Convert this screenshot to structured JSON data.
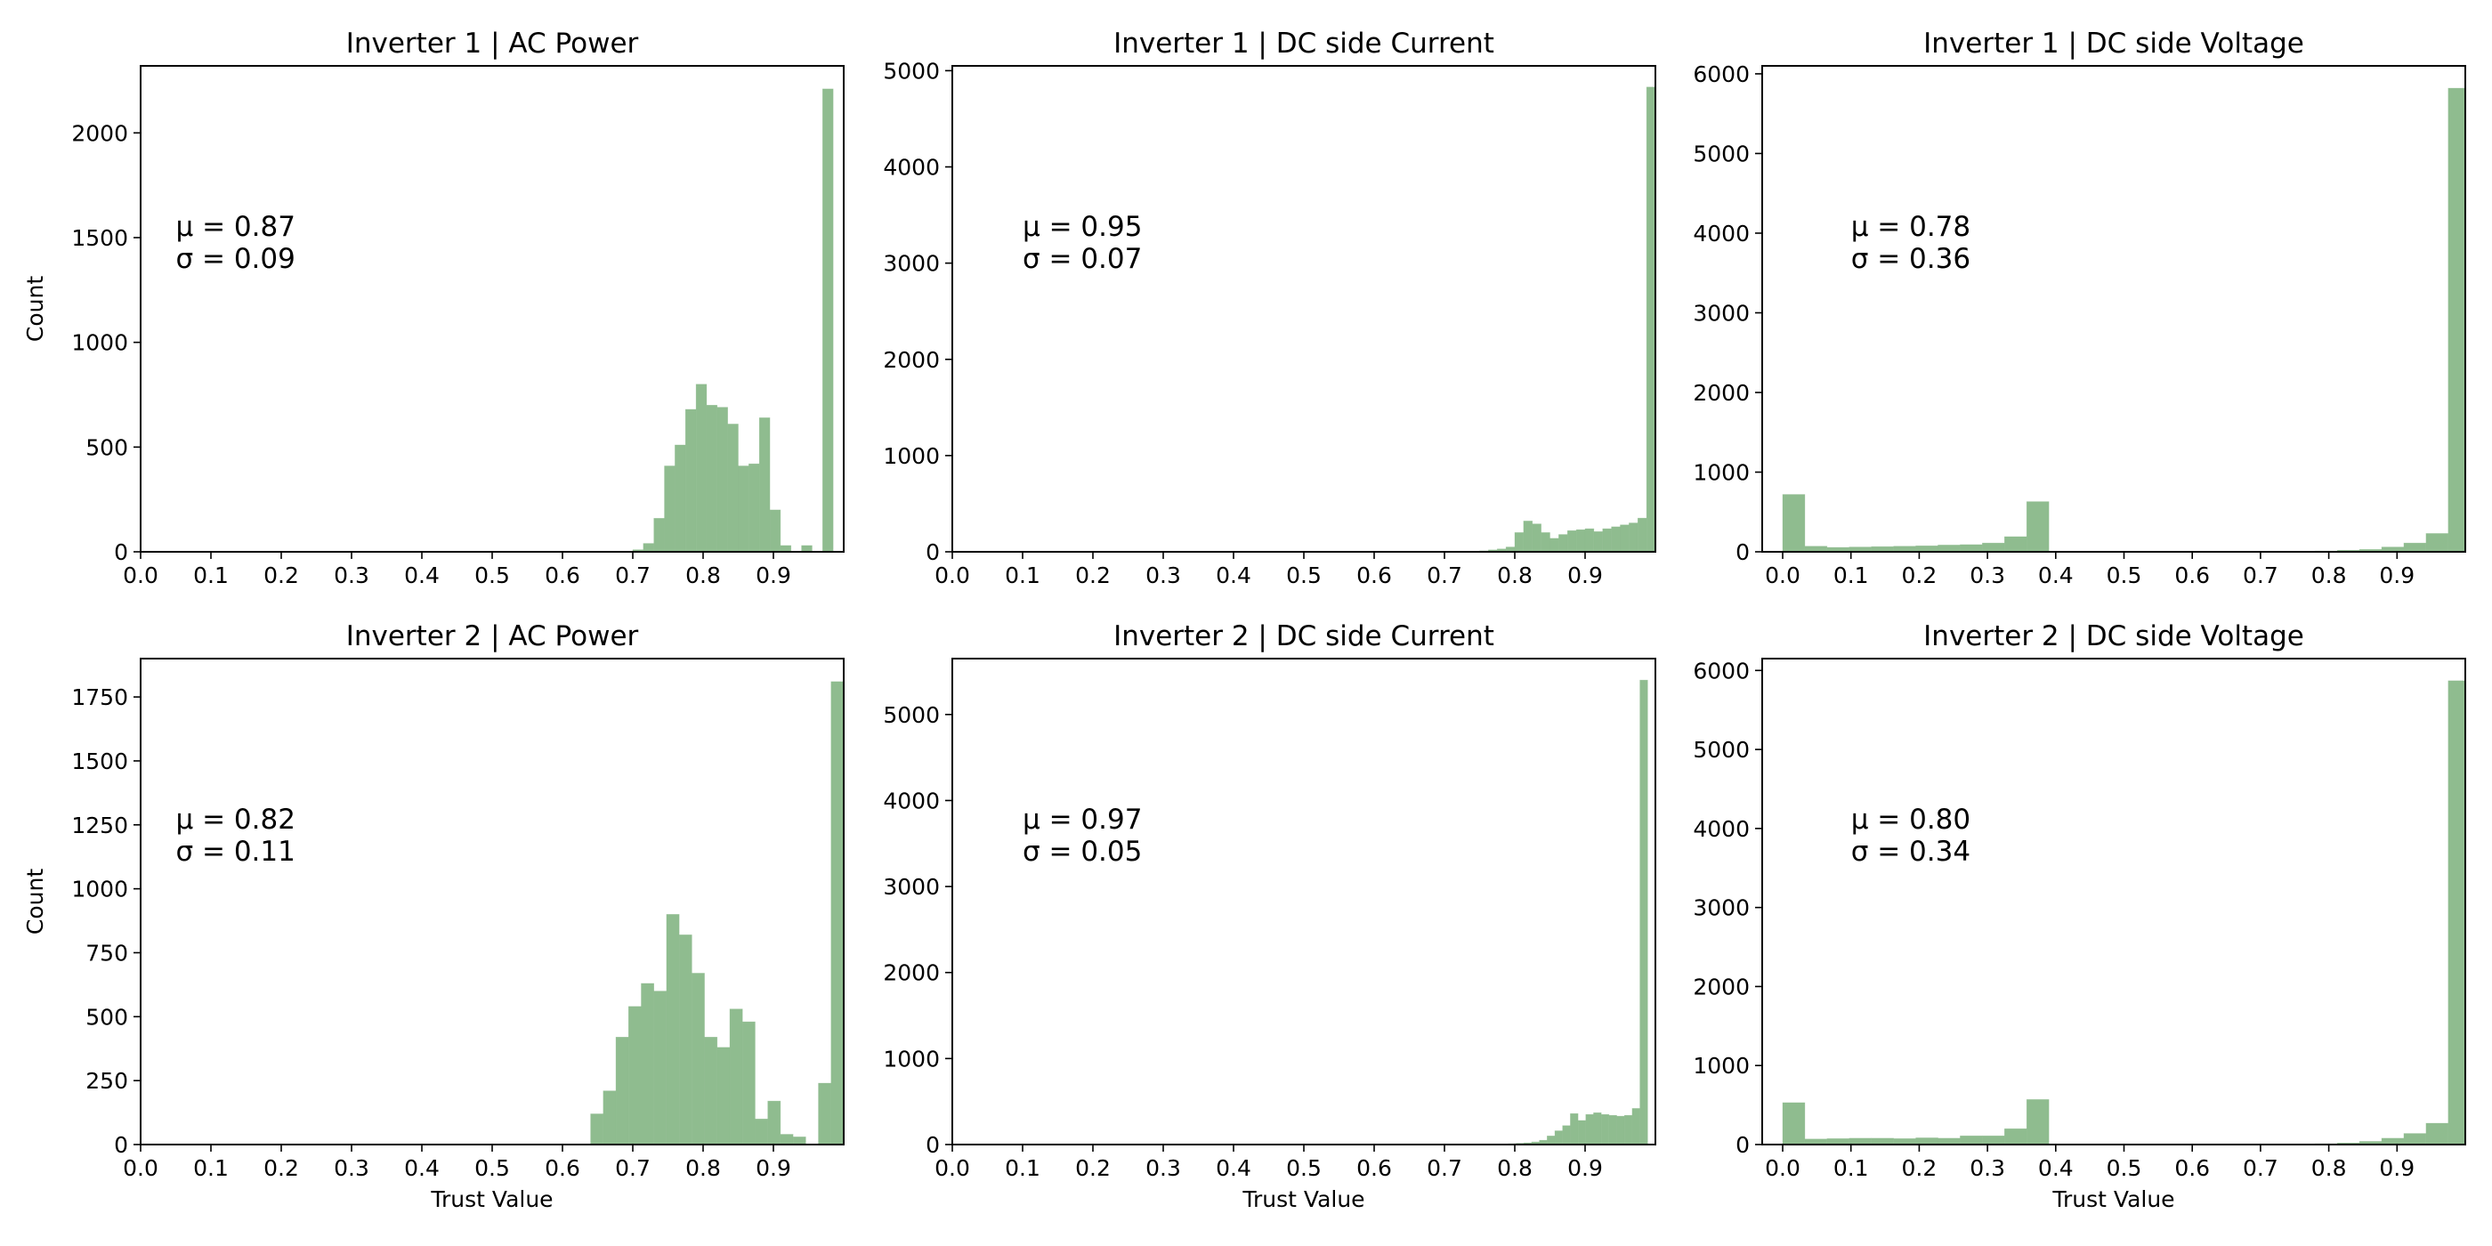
{
  "style": {
    "bar_color": "#8fbc8f",
    "bar_edge_color": "#8fbc8f",
    "axis_color": "#000000"
  },
  "chart_data": [
    {
      "type": "bar",
      "title": "Inverter 1 | AC Power",
      "xlabel": "",
      "ylabel": "Count",
      "xlim": [
        0.0,
        1.0
      ],
      "ylim": [
        0,
        2320
      ],
      "x_ticks": [
        "0.0",
        "0.1",
        "0.2",
        "0.3",
        "0.4",
        "0.5",
        "0.6",
        "0.7",
        "0.8",
        "0.9"
      ],
      "y_ticks": [
        0,
        500,
        1000,
        1500,
        2000
      ],
      "bin_edges": [
        0.7,
        0.715,
        0.73,
        0.745,
        0.76,
        0.775,
        0.79,
        0.805,
        0.82,
        0.835,
        0.85,
        0.865,
        0.88,
        0.895,
        0.91,
        0.925,
        0.94,
        0.955,
        0.97,
        0.985,
        1.0
      ],
      "values": [
        10,
        40,
        160,
        410,
        510,
        680,
        800,
        700,
        690,
        610,
        410,
        420,
        640,
        200,
        30,
        0,
        30,
        0,
        2210,
        0
      ],
      "stats": [
        "μ = 0.87",
        "σ = 0.09"
      ]
    },
    {
      "type": "bar",
      "title": "Inverter 1 | DC side Current",
      "xlabel": "",
      "ylabel": "",
      "xlim": [
        0.0,
        1.0
      ],
      "ylim": [
        0,
        5050
      ],
      "x_ticks": [
        "0.0",
        "0.1",
        "0.2",
        "0.3",
        "0.4",
        "0.5",
        "0.6",
        "0.7",
        "0.8",
        "0.9"
      ],
      "y_ticks": [
        0,
        1000,
        2000,
        3000,
        4000,
        5000
      ],
      "bin_edges": [
        0.75,
        0.7625,
        0.775,
        0.7875,
        0.8,
        0.8125,
        0.825,
        0.8375,
        0.85,
        0.8625,
        0.875,
        0.8875,
        0.9,
        0.9125,
        0.925,
        0.9375,
        0.95,
        0.9625,
        0.975,
        0.9875,
        1.0
      ],
      "values": [
        10,
        20,
        30,
        50,
        200,
        320,
        290,
        200,
        140,
        180,
        220,
        230,
        240,
        210,
        240,
        260,
        280,
        300,
        350,
        4830
      ],
      "stats": [
        "μ = 0.95",
        "σ = 0.07"
      ]
    },
    {
      "type": "bar",
      "title": "Inverter 1 | DC side Voltage",
      "xlabel": "",
      "ylabel": "",
      "xlim": [
        -0.03,
        1.0
      ],
      "ylim": [
        0,
        6100
      ],
      "x_ticks": [
        "0.0",
        "0.1",
        "0.2",
        "0.3",
        "0.4",
        "0.5",
        "0.6",
        "0.7",
        "0.8",
        "0.9"
      ],
      "y_ticks": [
        0,
        1000,
        2000,
        3000,
        4000,
        5000,
        6000
      ],
      "bin_edges": [
        0.0,
        0.0325,
        0.065,
        0.0975,
        0.13,
        0.1625,
        0.195,
        0.2275,
        0.26,
        0.2925,
        0.325,
        0.3575,
        0.39,
        0.4225,
        0.455,
        0.4875,
        0.52,
        0.5525,
        0.585,
        0.6175,
        0.65,
        0.6825,
        0.715,
        0.7475,
        0.78,
        0.8125,
        0.845,
        0.8775,
        0.91,
        0.9425,
        0.975,
        1.0
      ],
      "values": [
        720,
        70,
        55,
        60,
        65,
        70,
        75,
        85,
        90,
        110,
        190,
        630,
        0,
        0,
        0,
        0,
        0,
        0,
        0,
        0,
        0,
        0,
        0,
        5,
        10,
        20,
        30,
        60,
        110,
        230,
        5820
      ],
      "stats": [
        "μ = 0.78",
        "σ = 0.36"
      ]
    },
    {
      "type": "bar",
      "title": "Inverter 2 | AC Power",
      "xlabel": "Trust Value",
      "ylabel": "Count",
      "xlim": [
        0.0,
        1.0
      ],
      "ylim": [
        0,
        1900
      ],
      "x_ticks": [
        "0.0",
        "0.1",
        "0.2",
        "0.3",
        "0.4",
        "0.5",
        "0.6",
        "0.7",
        "0.8",
        "0.9"
      ],
      "y_ticks": [
        0,
        250,
        500,
        750,
        1000,
        1250,
        1500,
        1750
      ],
      "bin_edges": [
        0.64,
        0.658,
        0.676,
        0.694,
        0.712,
        0.73,
        0.748,
        0.766,
        0.784,
        0.802,
        0.82,
        0.838,
        0.856,
        0.874,
        0.892,
        0.91,
        0.928,
        0.946,
        0.964,
        0.982,
        1.0
      ],
      "values": [
        120,
        210,
        420,
        540,
        630,
        600,
        900,
        820,
        670,
        420,
        380,
        530,
        480,
        100,
        170,
        40,
        30,
        0,
        240,
        1810
      ],
      "stats": [
        "μ = 0.82",
        "σ = 0.11"
      ]
    },
    {
      "type": "bar",
      "title": "Inverter 2 | DC side Current",
      "xlabel": "Trust Value",
      "ylabel": "",
      "xlim": [
        0.0,
        1.0
      ],
      "ylim": [
        0,
        5650
      ],
      "x_ticks": [
        "0.0",
        "0.1",
        "0.2",
        "0.3",
        "0.4",
        "0.5",
        "0.6",
        "0.7",
        "0.8",
        "0.9"
      ],
      "y_ticks": [
        0,
        1000,
        2000,
        3000,
        4000,
        5000
      ],
      "bin_edges": [
        0.78,
        0.791,
        0.802,
        0.813,
        0.824,
        0.835,
        0.846,
        0.857,
        0.868,
        0.879,
        0.89,
        0.901,
        0.912,
        0.923,
        0.934,
        0.945,
        0.956,
        0.967,
        0.978,
        0.989,
        1.0
      ],
      "values": [
        5,
        10,
        15,
        20,
        30,
        50,
        100,
        160,
        220,
        360,
        280,
        350,
        370,
        350,
        340,
        330,
        340,
        420,
        5400,
        0
      ],
      "stats": [
        "μ = 0.97",
        "σ = 0.05"
      ]
    },
    {
      "type": "bar",
      "title": "Inverter 2 | DC side Voltage",
      "xlabel": "Trust Value",
      "ylabel": "",
      "xlim": [
        -0.03,
        1.0
      ],
      "ylim": [
        0,
        6150
      ],
      "x_ticks": [
        "0.0",
        "0.1",
        "0.2",
        "0.3",
        "0.4",
        "0.5",
        "0.6",
        "0.7",
        "0.8",
        "0.9"
      ],
      "y_ticks": [
        0,
        1000,
        2000,
        3000,
        4000,
        5000,
        6000
      ],
      "bin_edges": [
        0.0,
        0.0325,
        0.065,
        0.0975,
        0.13,
        0.1625,
        0.195,
        0.2275,
        0.26,
        0.2925,
        0.325,
        0.3575,
        0.39,
        0.4225,
        0.455,
        0.4875,
        0.52,
        0.5525,
        0.585,
        0.6175,
        0.65,
        0.6825,
        0.715,
        0.7475,
        0.78,
        0.8125,
        0.845,
        0.8775,
        0.91,
        0.9425,
        0.975,
        1.0
      ],
      "values": [
        530,
        70,
        75,
        80,
        80,
        75,
        85,
        80,
        110,
        110,
        200,
        570,
        0,
        0,
        0,
        0,
        0,
        0,
        0,
        0,
        0,
        0,
        0,
        5,
        10,
        20,
        40,
        80,
        140,
        270,
        5870
      ],
      "stats": [
        "μ = 0.80",
        "σ = 0.34"
      ]
    }
  ]
}
